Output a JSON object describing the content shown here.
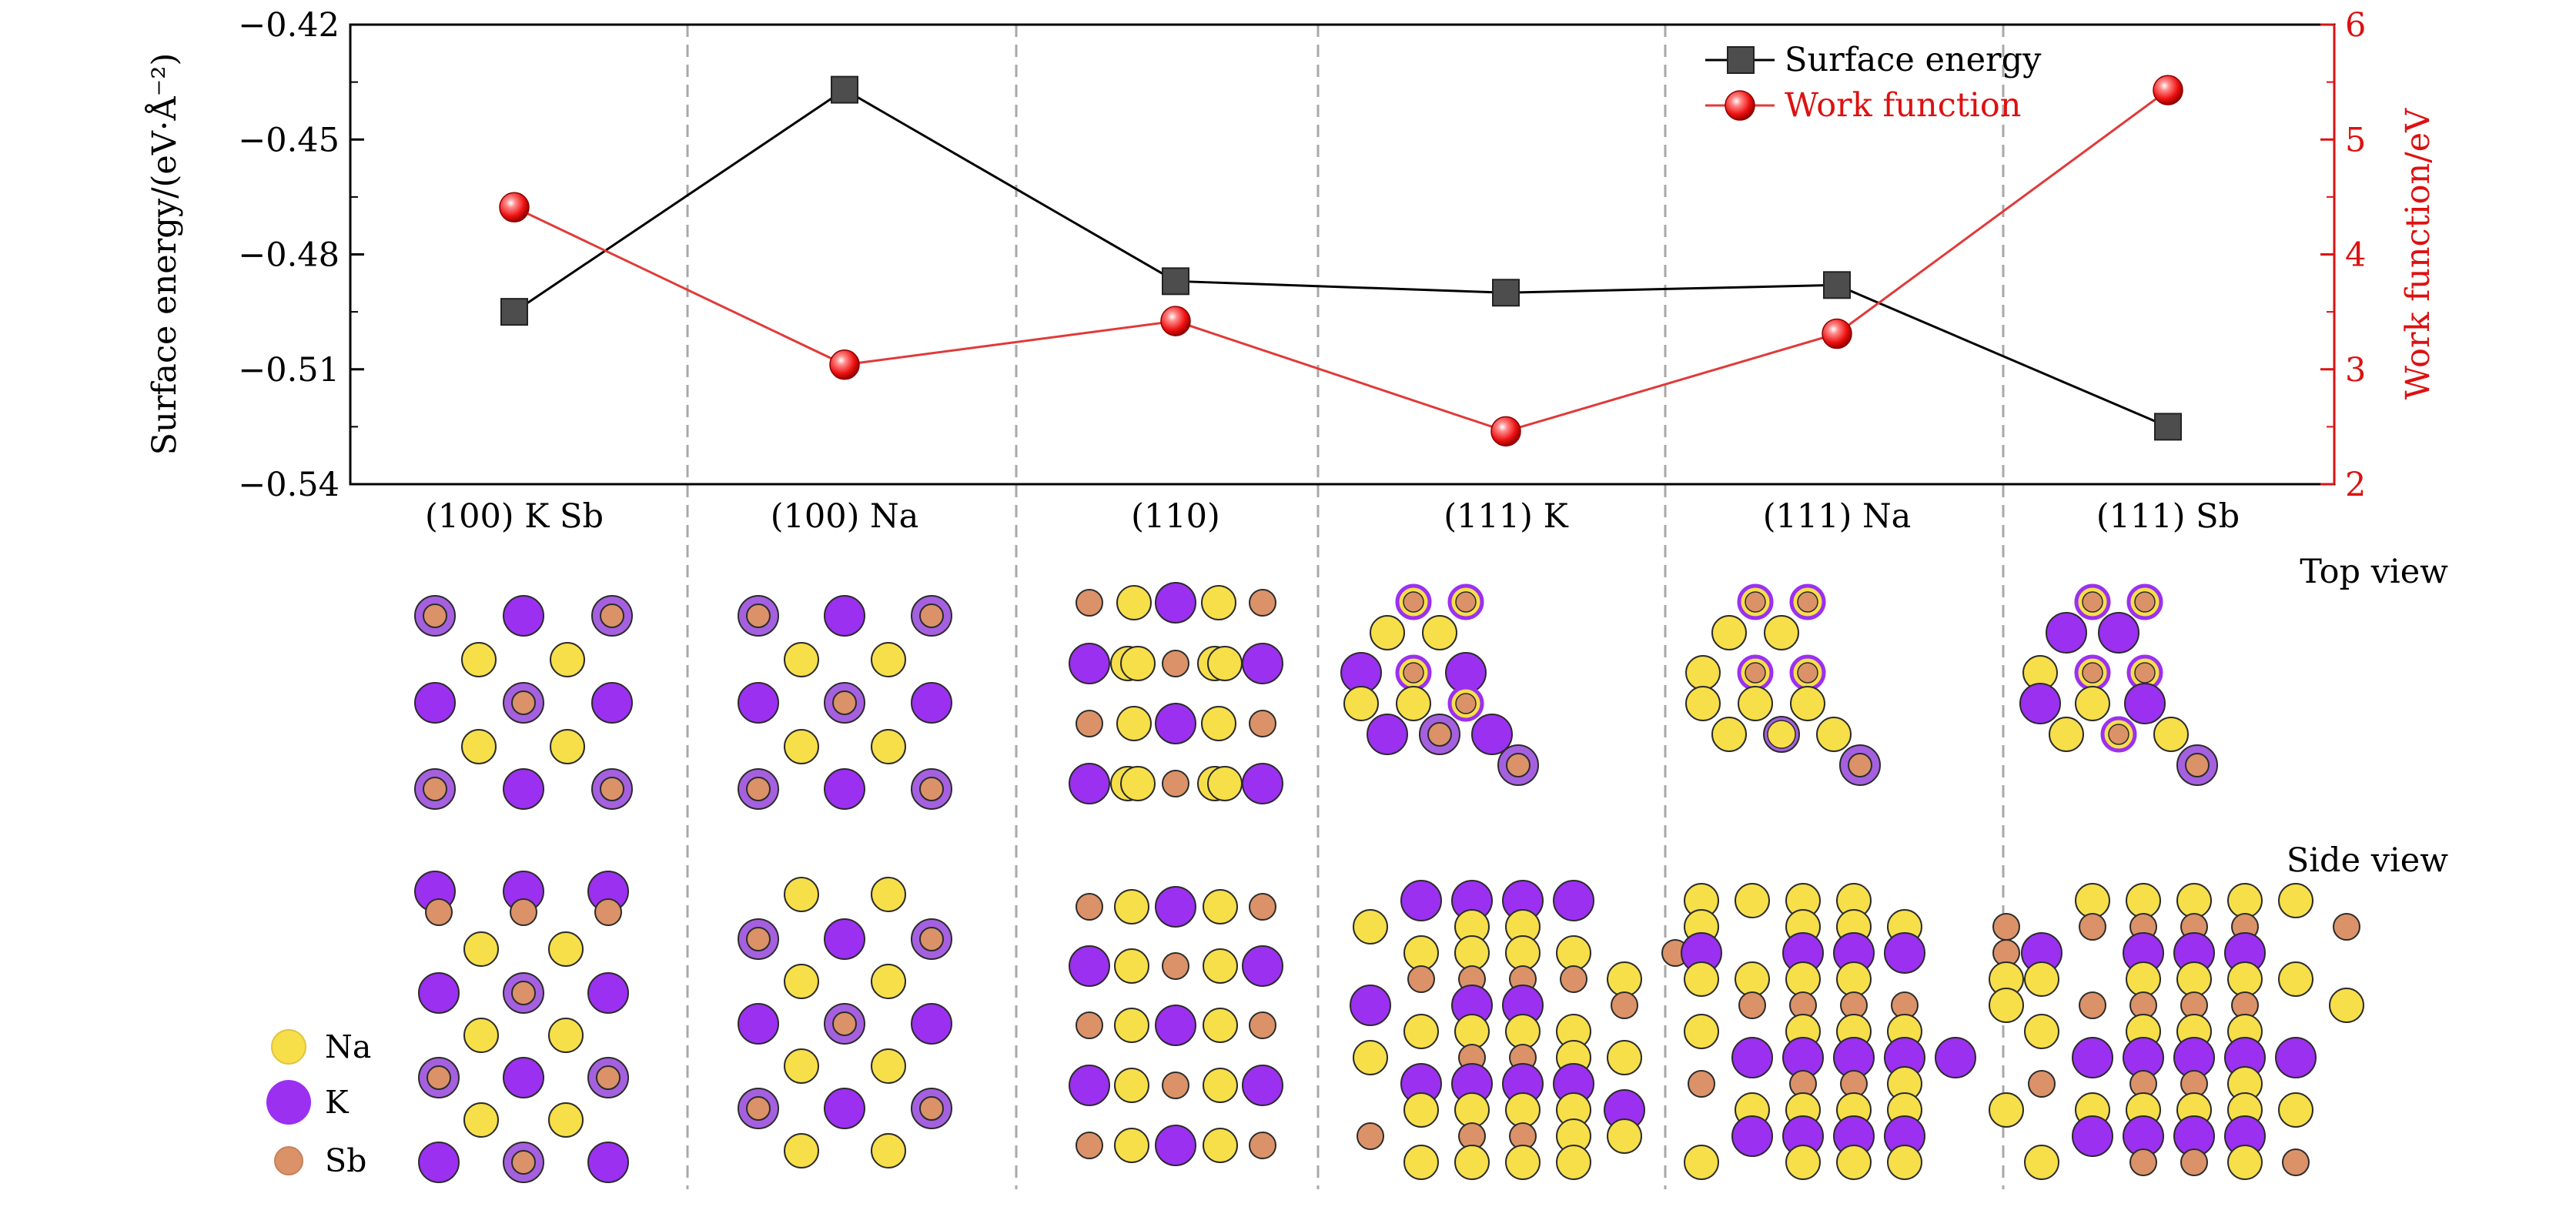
{
  "chart_data": {
    "type": "line",
    "categories": [
      "(100) K Sb",
      "(100) Na",
      "(110)",
      "(111) K",
      "(111) Na",
      "(111) Sb"
    ],
    "series": [
      {
        "name": "Surface energy",
        "axis": "left",
        "color": "#000000",
        "marker_color": "#4d4d4d",
        "marker": "square",
        "values": [
          -0.495,
          -0.437,
          -0.487,
          -0.49,
          -0.488,
          -0.525
        ]
      },
      {
        "name": "Work function",
        "axis": "right",
        "color": "#e03a3a",
        "marker_color": "#ee1111",
        "marker": "sphere",
        "values": [
          4.41,
          3.04,
          3.42,
          2.46,
          3.31,
          5.43
        ]
      }
    ],
    "ylabel": "Surface energy/(eV·Å⁻²)",
    "y2label": "Work function/eV",
    "ylim": [
      -0.54,
      -0.42
    ],
    "y2lim": [
      2,
      6
    ],
    "yticks": [
      "−0.42",
      "−0.45",
      "−0.48",
      "−0.51",
      "−0.54"
    ],
    "yticks_values": [
      -0.42,
      -0.45,
      -0.48,
      -0.51,
      -0.54
    ],
    "y2ticks": [
      "6",
      "5",
      "4",
      "3",
      "2"
    ],
    "y2ticks_values": [
      6,
      5,
      4,
      3,
      2
    ],
    "legend_position": "top-right",
    "grid": false
  },
  "panels": {
    "top_view_label": "Top view",
    "side_view_label": "Side view"
  },
  "atom_legend": [
    {
      "label": "Na",
      "color": "#f7df4a"
    },
    {
      "label": "K",
      "color": "#9b30f0"
    },
    {
      "label": "Sb",
      "color": "#db9268"
    }
  ],
  "colors": {
    "na": "#f7df4a",
    "k": "#9b30f0",
    "k_ring": "#a560e0",
    "sb": "#db9268",
    "outline": "#2b2b2b",
    "divider": "#a8a8a8",
    "right_axis": "#dd1111"
  }
}
